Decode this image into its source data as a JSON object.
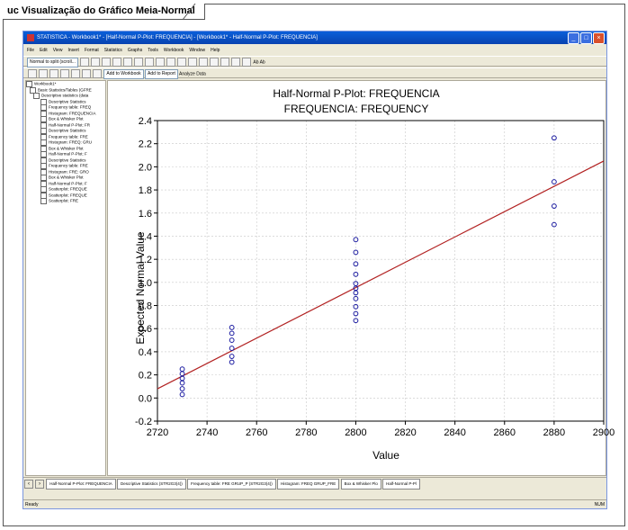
{
  "diagram": {
    "tab_title": "uc Visualização do Gráfico Meia-Normal"
  },
  "window": {
    "title": "STATISTICA - Workbook1* - [Half-Normal P-Plot: FREQUENCIA] - [Workbook1* - Half-Normal P-Plot: FREQUENCIA]",
    "menu": [
      "File",
      "Edit",
      "View",
      "Insert",
      "Format",
      "Statistics",
      "Graphs",
      "Tools",
      "Workbook",
      "Window",
      "Help"
    ],
    "toolbar1": {
      "field": "Normal to split (scroll...",
      "zoom": "Ab Ab"
    },
    "toolbar2": {
      "analysis_dropdown": "Add to Workbook",
      "add_report": "Add to Report",
      "analysis_button": "Analyze Data"
    }
  },
  "tree": {
    "root": "Workbook1*",
    "items": [
      "Basic Statistics/Tables (GFRE",
      "Descriptive statistics (data",
      "Descriptive Statistics",
      "Frequency table: FREQ",
      "Histogram: FREQUENCIA",
      "Box & Whisker Plot",
      "Half-Normal P-Plot: FR",
      "Descriptive Statistics",
      "Frequency table: FRE",
      "Histogram: FREQ: GRU",
      "Box & Whisker Plot",
      "Half-Normal P-Plot: F",
      "Descriptive Statistics",
      "Frequency table: FRE",
      "Histogram: FRE: GRO",
      "Box & Whisker Plot",
      "Half-Normal P-Plot: F",
      "Scatterplot: FREQUE",
      "Scatterplot: FREQUE",
      "Scatterplot: FRE"
    ]
  },
  "bottom_tabs": [
    "Half-Normal P-Plot: FREQUENCIA",
    "Descriptive Statistics (STR2G3(4))",
    "Frequency table: FRE GRUP_P (STR2G3(4))",
    "Histogram: FREQ GRUP_FRE",
    "Box & Whisker Plo",
    "Half-Normal P-Pl"
  ],
  "status": {
    "left": "Ready",
    "right": "NUM"
  },
  "colors": {
    "fit_line": "#B22222",
    "points": "#1a1aa0",
    "gridline": "#c8c8c8"
  },
  "chart_data": {
    "type": "scatter",
    "title": "Half-Normal P-Plot: FREQUENCIA",
    "subtitle": "FREQUENCIA: FREQUENCY",
    "xlabel": "Value",
    "ylabel": "Expected Normal Value",
    "xlim": [
      2720,
      2900
    ],
    "ylim": [
      -0.2,
      2.4
    ],
    "xticks": [
      2720,
      2740,
      2760,
      2780,
      2800,
      2820,
      2840,
      2860,
      2880,
      2900
    ],
    "yticks": [
      -0.2,
      0.0,
      0.2,
      0.4,
      0.6,
      0.8,
      1.0,
      1.2,
      1.4,
      1.6,
      1.8,
      2.0,
      2.2,
      2.4
    ],
    "grid": true,
    "points": [
      {
        "x": 2730,
        "y": 0.03
      },
      {
        "x": 2730,
        "y": 0.08
      },
      {
        "x": 2730,
        "y": 0.13
      },
      {
        "x": 2730,
        "y": 0.17
      },
      {
        "x": 2730,
        "y": 0.21
      },
      {
        "x": 2730,
        "y": 0.25
      },
      {
        "x": 2750,
        "y": 0.31
      },
      {
        "x": 2750,
        "y": 0.36
      },
      {
        "x": 2750,
        "y": 0.43
      },
      {
        "x": 2750,
        "y": 0.5
      },
      {
        "x": 2750,
        "y": 0.56
      },
      {
        "x": 2750,
        "y": 0.61
      },
      {
        "x": 2800,
        "y": 0.67
      },
      {
        "x": 2800,
        "y": 0.73
      },
      {
        "x": 2800,
        "y": 0.79
      },
      {
        "x": 2800,
        "y": 0.86
      },
      {
        "x": 2800,
        "y": 0.91
      },
      {
        "x": 2800,
        "y": 0.95
      },
      {
        "x": 2800,
        "y": 0.99
      },
      {
        "x": 2800,
        "y": 1.07
      },
      {
        "x": 2800,
        "y": 1.16
      },
      {
        "x": 2800,
        "y": 1.26
      },
      {
        "x": 2800,
        "y": 1.37
      },
      {
        "x": 2880,
        "y": 1.5
      },
      {
        "x": 2880,
        "y": 1.66
      },
      {
        "x": 2880,
        "y": 1.87
      },
      {
        "x": 2880,
        "y": 2.25
      }
    ],
    "fit_line": {
      "x": [
        2720,
        2900
      ],
      "y": [
        0.08,
        2.05
      ]
    }
  }
}
